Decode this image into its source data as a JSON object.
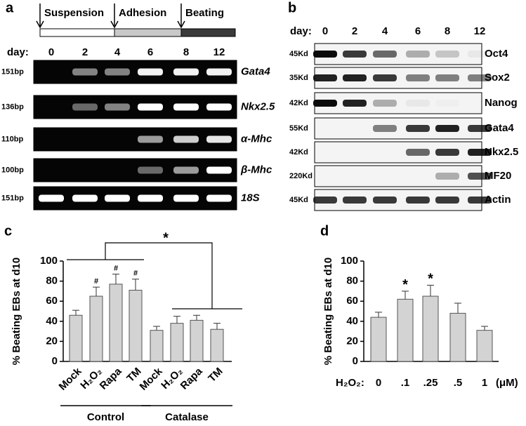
{
  "panel_a": {
    "label": "a",
    "stages": [
      "Suspension",
      "Adhesion",
      "Beating"
    ],
    "day_label": "day:",
    "days": [
      "0",
      "2",
      "4",
      "6",
      "8",
      "12"
    ],
    "rows": [
      {
        "size": "151bp",
        "gene": "Gata4"
      },
      {
        "size": "136bp",
        "gene": "Nkx2.5"
      },
      {
        "size": "110bp",
        "gene": "α-Mhc"
      },
      {
        "size": "100bp",
        "gene": "β-Mhc"
      },
      {
        "size": "151bp",
        "gene": "18S"
      }
    ]
  },
  "panel_b": {
    "label": "b",
    "day_label": "day:",
    "days": [
      "0",
      "2",
      "4",
      "6",
      "8",
      "12"
    ],
    "rows": [
      {
        "size": "45Kd",
        "protein": "Oct4"
      },
      {
        "size": "35Kd",
        "protein": "Sox2"
      },
      {
        "size": "42Kd",
        "protein": "Nanog"
      },
      {
        "size": "55Kd",
        "protein": "Gata4"
      },
      {
        "size": "42Kd",
        "protein": "Nkx2.5"
      },
      {
        "size": "220Kd",
        "protein": "MF20"
      },
      {
        "size": "45Kd",
        "protein": "Actin"
      }
    ]
  },
  "chart_data": [
    {
      "type": "bar",
      "panel_label": "c",
      "ylabel": "% Beating EBs at d10",
      "categories": [
        "Mock",
        "H₂O₂",
        "Rapa",
        "TM",
        "Mock",
        "H₂O₂",
        "Rapa",
        "TM"
      ],
      "group_labels": [
        "Control",
        "Catalase"
      ],
      "values": [
        46,
        65,
        77,
        71,
        31,
        38,
        41,
        32
      ],
      "errors": [
        5,
        9,
        10,
        11,
        4,
        7,
        5,
        6
      ],
      "markers": [
        null,
        "#",
        "#",
        "#",
        null,
        null,
        null,
        null
      ],
      "bracket_label": "*",
      "color": "#d3d3d3",
      "ylim": [
        0,
        100
      ],
      "yticks": [
        0,
        20,
        40,
        60,
        80,
        100
      ]
    },
    {
      "type": "bar",
      "panel_label": "d",
      "ylabel": "% Beating EBs at d10",
      "xlabel": "H₂O₂:",
      "unit": "(μM)",
      "categories": [
        "0",
        ".1",
        ".25",
        ".5",
        "1"
      ],
      "values": [
        44,
        62,
        65,
        48,
        31
      ],
      "errors": [
        5,
        8,
        11,
        10,
        4
      ],
      "markers": [
        null,
        "*",
        "*",
        null,
        null
      ],
      "color": "#d3d3d3",
      "ylim": [
        0,
        100
      ],
      "yticks": [
        0,
        20,
        40,
        60,
        80,
        100
      ]
    }
  ]
}
